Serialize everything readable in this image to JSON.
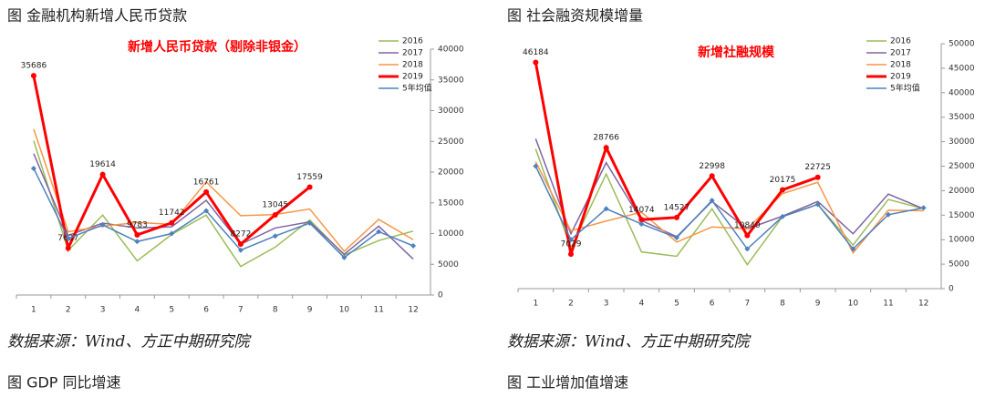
{
  "chart_data": [
    {
      "type": "line",
      "title": "图  金融机构新增人民币贷款",
      "annotation": "新增人民币贷款（剔除非银金）",
      "categories": [
        "1",
        "2",
        "3",
        "4",
        "5",
        "6",
        "7",
        "8",
        "9",
        "10",
        "11",
        "12"
      ],
      "ylim": [
        0,
        40000
      ],
      "yticks": [
        0,
        5000,
        10000,
        15000,
        20000,
        25000,
        30000,
        35000,
        40000
      ],
      "legend": "upper right",
      "series": [
        {
          "name": "2016",
          "color": "#9bbb59",
          "values": [
            25100,
            7260,
            13000,
            5560,
            9850,
            13000,
            4640,
            7790,
            12200,
            6510,
            8860,
            10400
          ]
        },
        {
          "name": "2017",
          "color": "#8064a2",
          "values": [
            23000,
            9700,
            11700,
            10900,
            11100,
            15400,
            8260,
            10900,
            11900,
            6630,
            11200,
            5840
          ]
        },
        {
          "name": "2018",
          "color": "#f79646",
          "values": [
            27000,
            10300,
            11200,
            11800,
            11500,
            18400,
            12900,
            13100,
            14000,
            7120,
            12300,
            9000
          ]
        },
        {
          "name": "2019",
          "color": "#ff0000",
          "values": [
            35686,
            7637,
            19614,
            9783,
            11742,
            16761,
            8272,
            13045,
            17559,
            null,
            null,
            null
          ],
          "labels": true
        },
        {
          "name": "5年均值",
          "color": "#4f81bd",
          "values": [
            20600,
            9200,
            11400,
            8700,
            10000,
            13700,
            7300,
            9600,
            11700,
            6100,
            10300,
            8000
          ]
        }
      ]
    },
    {
      "type": "line",
      "title": "图  社会融资规模增量",
      "annotation": "新增社融规模",
      "categories": [
        "1",
        "2",
        "3",
        "4",
        "5",
        "6",
        "7",
        "8",
        "9",
        "10",
        "11",
        "12"
      ],
      "ylim": [
        0,
        50000
      ],
      "yticks": [
        0,
        5000,
        10000,
        15000,
        20000,
        25000,
        30000,
        35000,
        40000,
        45000,
        50000
      ],
      "legend": "upper right",
      "series": [
        {
          "name": "2016",
          "color": "#9bbb59",
          "values": [
            28500,
            8300,
            23400,
            7500,
            6600,
            16300,
            4900,
            14700,
            17200,
            8900,
            18200,
            16300
          ]
        },
        {
          "name": "2017",
          "color": "#8064a2",
          "values": [
            30600,
            11200,
            25700,
            13900,
            10600,
            17800,
            12200,
            14800,
            17800,
            11200,
            19300,
            16300
          ]
        },
        {
          "name": "2018",
          "color": "#f79646",
          "values": [
            25900,
            11800,
            13800,
            15600,
            9500,
            12600,
            12200,
            19400,
            21700,
            7300,
            16000,
            15900
          ]
        },
        {
          "name": "2019",
          "color": "#ff0000",
          "values": [
            46184,
            7029,
            28766,
            14074,
            14527,
            22998,
            10840,
            20175,
            22725,
            null,
            null,
            null
          ],
          "labels": true
        },
        {
          "name": "5年均值",
          "color": "#4f81bd",
          "values": [
            25000,
            10000,
            16300,
            13200,
            10400,
            18000,
            8100,
            14700,
            17200,
            8100,
            15100,
            16500
          ]
        }
      ]
    }
  ],
  "sources": [
    "数据来源：Wind、方正中期研究院",
    "数据来源：Wind、方正中期研究院"
  ],
  "next_captions": [
    "图    GDP 同比增速",
    "图    工业增加值增速"
  ]
}
